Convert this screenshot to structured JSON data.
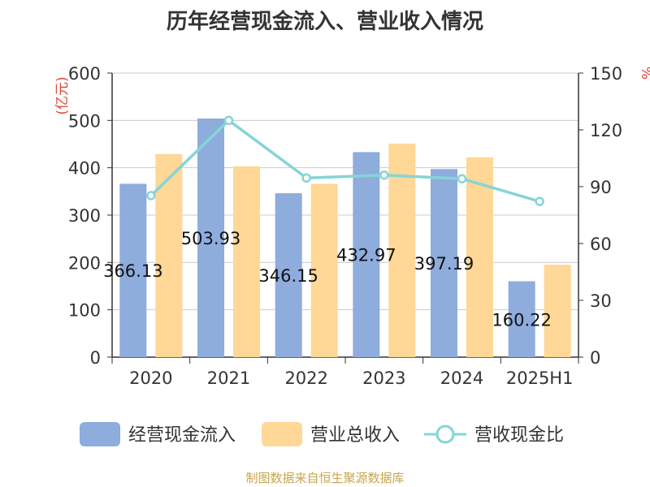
{
  "title": "历年经营现金流入、营业收入情况",
  "footer": "制图数据来自恒生聚源数据库",
  "colors": {
    "cash": "#8eacdc",
    "revenue": "#ffd796",
    "ratio": "#86d4d6",
    "unit": "#e0443c"
  },
  "chart_data": {
    "type": "bar",
    "categories": [
      "2020",
      "2021",
      "2022",
      "2023",
      "2024",
      "2025H1"
    ],
    "y_left_label": "(亿元)",
    "y_right_label": "%",
    "y_left_range": [
      0,
      600
    ],
    "y_left_ticks": [
      "0",
      "100",
      "200",
      "300",
      "400",
      "500",
      "600"
    ],
    "y_right_range": [
      0,
      150
    ],
    "y_right_ticks": [
      "0",
      "30",
      "60",
      "90",
      "120",
      "150"
    ],
    "grid": true,
    "legend_position": "bottom",
    "series": [
      {
        "name": "经营现金流入",
        "type": "bar",
        "values": [
          366.13,
          503.93,
          346.15,
          432.97,
          397.19,
          160.22
        ],
        "labels": [
          "366.13",
          "503.93",
          "346.15",
          "432.97",
          "397.19",
          "160.22"
        ]
      },
      {
        "name": "营业总收入",
        "type": "bar",
        "values": [
          429,
          403,
          366,
          451,
          422,
          195
        ]
      },
      {
        "name": "营收现金比",
        "type": "line",
        "axis": "right",
        "values": [
          85.3,
          125.0,
          94.6,
          96.1,
          94.2,
          82.2
        ]
      }
    ]
  }
}
